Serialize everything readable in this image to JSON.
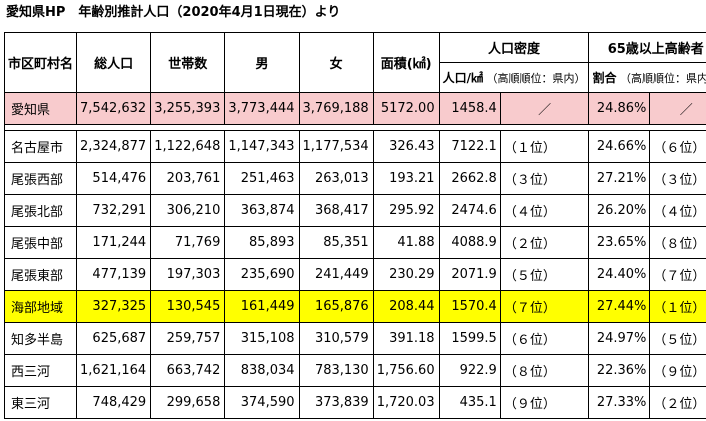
{
  "title": "愛知県HP　年齢別推計人口（2020年4月1日現在）より",
  "headers": {
    "name": "市区町村名",
    "population": "総人口",
    "households": "世帯数",
    "male": "男",
    "female": "女",
    "area": "面積(㎢)",
    "density_group": "人口密度",
    "density_sub_main": "人口/㎢",
    "density_sub_note": "（高順順位：県内）",
    "elderly_group": "65歳以上高齢者",
    "elderly_sub_main": "割合",
    "elderly_sub_note": "（高順順位：県内）"
  },
  "total_row": {
    "name": "愛知県",
    "population": "7,542,632",
    "households": "3,255,393",
    "male": "3,773,444",
    "female": "3,769,188",
    "area": "5172.00",
    "density": "1458.4",
    "density_rank": "／",
    "elderly": "24.86%",
    "elderly_rank": "／"
  },
  "rows": [
    {
      "name": "名古屋市",
      "population": "2,324,877",
      "households": "1,122,648",
      "male": "1,147,343",
      "female": "1,177,534",
      "area": "326.43",
      "density": "7122.1",
      "density_rank": "（１位）",
      "elderly": "24.66%",
      "elderly_rank": "（６位）"
    },
    {
      "name": "尾張西部",
      "population": "514,476",
      "households": "203,761",
      "male": "251,463",
      "female": "263,013",
      "area": "193.21",
      "density": "2662.8",
      "density_rank": "（３位）",
      "elderly": "27.21%",
      "elderly_rank": "（３位）"
    },
    {
      "name": "尾張北部",
      "population": "732,291",
      "households": "306,210",
      "male": "363,874",
      "female": "368,417",
      "area": "295.92",
      "density": "2474.6",
      "density_rank": "（４位）",
      "elderly": "26.20%",
      "elderly_rank": "（４位）"
    },
    {
      "name": "尾張中部",
      "population": "171,244",
      "households": "71,769",
      "male": "85,893",
      "female": "85,351",
      "area": "41.88",
      "density": "4088.9",
      "density_rank": "（２位）",
      "elderly": "23.65%",
      "elderly_rank": "（８位）"
    },
    {
      "name": "尾張東部",
      "population": "477,139",
      "households": "197,303",
      "male": "235,690",
      "female": "241,449",
      "area": "230.29",
      "density": "2071.9",
      "density_rank": "（５位）",
      "elderly": "24.40%",
      "elderly_rank": "（７位）"
    },
    {
      "name": "海部地域",
      "population": "327,325",
      "households": "130,545",
      "male": "161,449",
      "female": "165,876",
      "area": "208.44",
      "density": "1570.4",
      "density_rank": "（７位）",
      "elderly": "27.44%",
      "elderly_rank": "（１位）",
      "highlight": true
    },
    {
      "name": "知多半島",
      "population": "625,687",
      "households": "259,757",
      "male": "315,108",
      "female": "310,579",
      "area": "391.18",
      "density": "1599.5",
      "density_rank": "（６位）",
      "elderly": "24.97%",
      "elderly_rank": "（５位）"
    },
    {
      "name": "西三河",
      "population": "1,621,164",
      "households": "663,742",
      "male": "838,034",
      "female": "783,130",
      "area": "1,756.60",
      "density": "922.9",
      "density_rank": "（８位）",
      "elderly": "22.36%",
      "elderly_rank": "（９位）"
    },
    {
      "name": "東三河",
      "population": "748,429",
      "households": "299,658",
      "male": "374,590",
      "female": "373,839",
      "area": "1,720.03",
      "density": "435.1",
      "density_rank": "（９位）",
      "elderly": "27.33%",
      "elderly_rank": "（２位）"
    }
  ],
  "colors": {
    "total_row_bg": "#f8cbcd",
    "highlight_bg": "#ffff00"
  }
}
